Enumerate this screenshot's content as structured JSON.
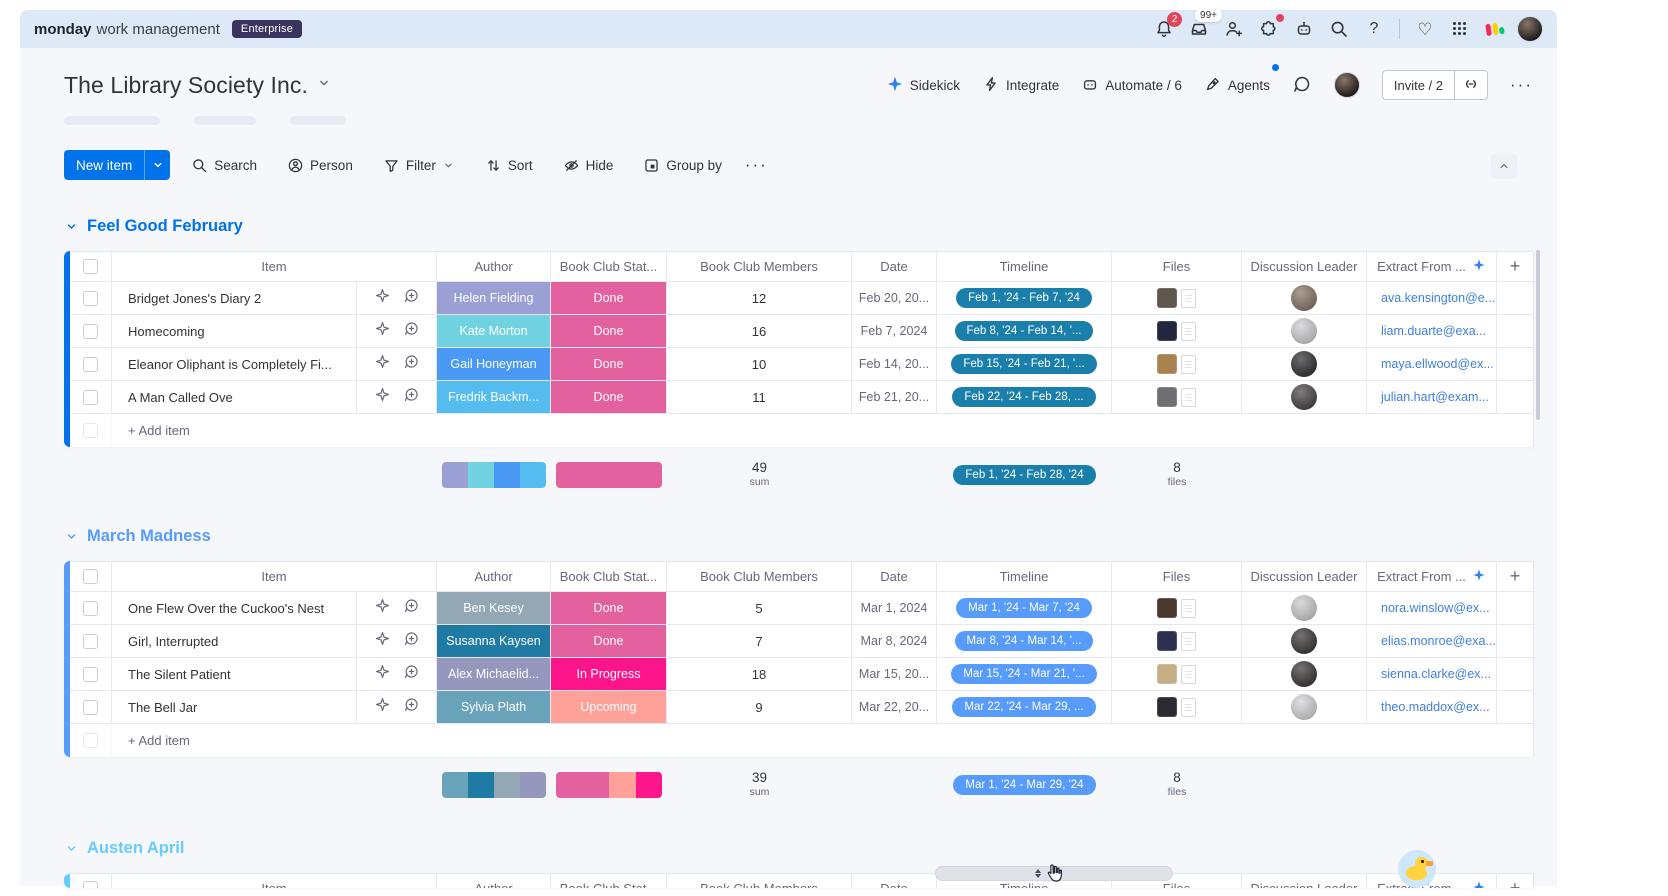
{
  "topbar": {
    "brand_bold": "monday",
    "brand_rest": "work management",
    "plan_badge": "Enterprise",
    "notification_badge": "2",
    "inbox_badge": "99+"
  },
  "board": {
    "title": "The Library Society Inc.",
    "sidekick": "Sidekick",
    "integrate": "Integrate",
    "automate": "Automate / 6",
    "agents": "Agents",
    "invite": "Invite / 2",
    "more": "···"
  },
  "toolbar": {
    "new_item": "New item",
    "search": "Search",
    "person": "Person",
    "filter": "Filter",
    "sort": "Sort",
    "hide": "Hide",
    "group_by": "Group by",
    "more": "···"
  },
  "table": {
    "columns": [
      "Item",
      "Author",
      "Book Club Stat...",
      "Book Club Members",
      "Date",
      "Timeline",
      "Files",
      "Discussion Leader",
      "Extract From ..."
    ],
    "add_column": "+",
    "add_item": "+ Add item",
    "sum_label": "sum",
    "files_label": "files"
  },
  "groups": [
    {
      "name": "Feel Good February",
      "color": "#0073ea",
      "timeline_color": "#1a7fab",
      "rows": [
        {
          "item": "Bridget Jones's Diary 2",
          "author": "Helen Fielding",
          "author_color": "#9aa0d4",
          "status": "Done",
          "status_color": "#e2619e",
          "members": "12",
          "date": "Feb 20, 20...",
          "timeline": "Feb 1, '24 - Feb 7, '24",
          "email": "ava.kensington@e...",
          "avatar_color": "#7c6a5a",
          "file_color": "#5f564c"
        },
        {
          "item": "Homecoming",
          "author": "Kate Morton",
          "author_color": "#71d2e2",
          "status": "Done",
          "status_color": "#e2619e",
          "members": "16",
          "date": "Feb 7, 2024",
          "timeline": "Feb 8, '24 - Feb 14, '...",
          "email": "liam.duarte@exa...",
          "avatar_color": "#c9c9cc",
          "file_color": "#23263d"
        },
        {
          "item": "Eleanor Oliphant is Completely Fi...",
          "author": "Gail Honeyman",
          "author_color": "#4a9af5",
          "status": "Done",
          "status_color": "#e2619e",
          "members": "10",
          "date": "Feb 14, 20...",
          "timeline": "Feb 15, '24 - Feb 21, '...",
          "email": "maya.ellwood@ex...",
          "avatar_color": "#1f1d20",
          "file_color": "#a8834f"
        },
        {
          "item": "A Man Called Ove",
          "author": "Fredrik Backm...",
          "author_color": "#55bcf0",
          "status": "Done",
          "status_color": "#e2619e",
          "members": "11",
          "date": "Feb 21, 20...",
          "timeline": "Feb 22, '24 - Feb 28, ...",
          "email": "julian.hart@exam...",
          "avatar_color": "#3a3436",
          "file_color": "#6f6f74"
        }
      ],
      "summary": {
        "members": "49",
        "timeline": "Feb 1, '24 - Feb 28, '24",
        "files": "8",
        "author_dist": [
          {
            "color": "#9aa0d4",
            "pct": 25
          },
          {
            "color": "#71d2e2",
            "pct": 25
          },
          {
            "color": "#4a9af5",
            "pct": 25
          },
          {
            "color": "#55bcf0",
            "pct": 25
          }
        ],
        "status_dist": [
          {
            "color": "#e2619e",
            "pct": 100
          }
        ]
      }
    },
    {
      "name": "March Madness",
      "color": "#579bfc",
      "timeline_color": "#579bfc",
      "rows": [
        {
          "item": "One Flew Over the Cuckoo's Nest",
          "author": "Ben Kesey",
          "author_color": "#93a7b5",
          "status": "Done",
          "status_color": "#e2619e",
          "members": "5",
          "date": "Mar 1, 2024",
          "timeline": "Mar 1, '24 - Mar 7, '24",
          "email": "nora.winslow@ex...",
          "avatar_color": "#c6c6c8",
          "file_color": "#4a382e"
        },
        {
          "item": "Girl, Interrupted",
          "author": "Susanna Kaysen",
          "author_color": "#1f7ba3",
          "status": "Done",
          "status_color": "#e2619e",
          "members": "7",
          "date": "Mar 8, 2024",
          "timeline": "Mar 8, '24 - Mar 14, '...",
          "email": "elias.monroe@exa...",
          "avatar_color": "#2a2624",
          "file_color": "#2e3150"
        },
        {
          "item": "The Silent Patient",
          "author": "Alex Michaelid...",
          "author_color": "#9597bd",
          "status": "In Progress",
          "status_color": "#ff158a",
          "members": "18",
          "date": "Mar 15, 20...",
          "timeline": "Mar 15, '24 - Mar 21, '...",
          "email": "sienna.clarke@ex...",
          "avatar_color": "#2b2523",
          "file_color": "#c5ae85"
        },
        {
          "item": "The Bell Jar",
          "author": "Sylvia Plath",
          "author_color": "#69a3ba",
          "status": "Upcoming",
          "status_color": "#ffa199",
          "members": "9",
          "date": "Mar 22, 20...",
          "timeline": "Mar 22, '24 - Mar 29, ...",
          "email": "theo.maddox@ex...",
          "avatar_color": "#cfcfd2",
          "file_color": "#2d2a33"
        }
      ],
      "summary": {
        "members": "39",
        "timeline": "Mar 1, '24 - Mar 29, '24",
        "files": "8",
        "author_dist": [
          {
            "color": "#69a3ba",
            "pct": 25
          },
          {
            "color": "#1f7ba3",
            "pct": 25
          },
          {
            "color": "#93a7b5",
            "pct": 25
          },
          {
            "color": "#9597bd",
            "pct": 25
          }
        ],
        "status_dist": [
          {
            "color": "#e2619e",
            "pct": 50
          },
          {
            "color": "#ffa199",
            "pct": 25
          },
          {
            "color": "#ff158a",
            "pct": 25
          }
        ]
      }
    },
    {
      "name": "Austen April",
      "color": "#66ccff",
      "partial": true,
      "rows": []
    }
  ]
}
